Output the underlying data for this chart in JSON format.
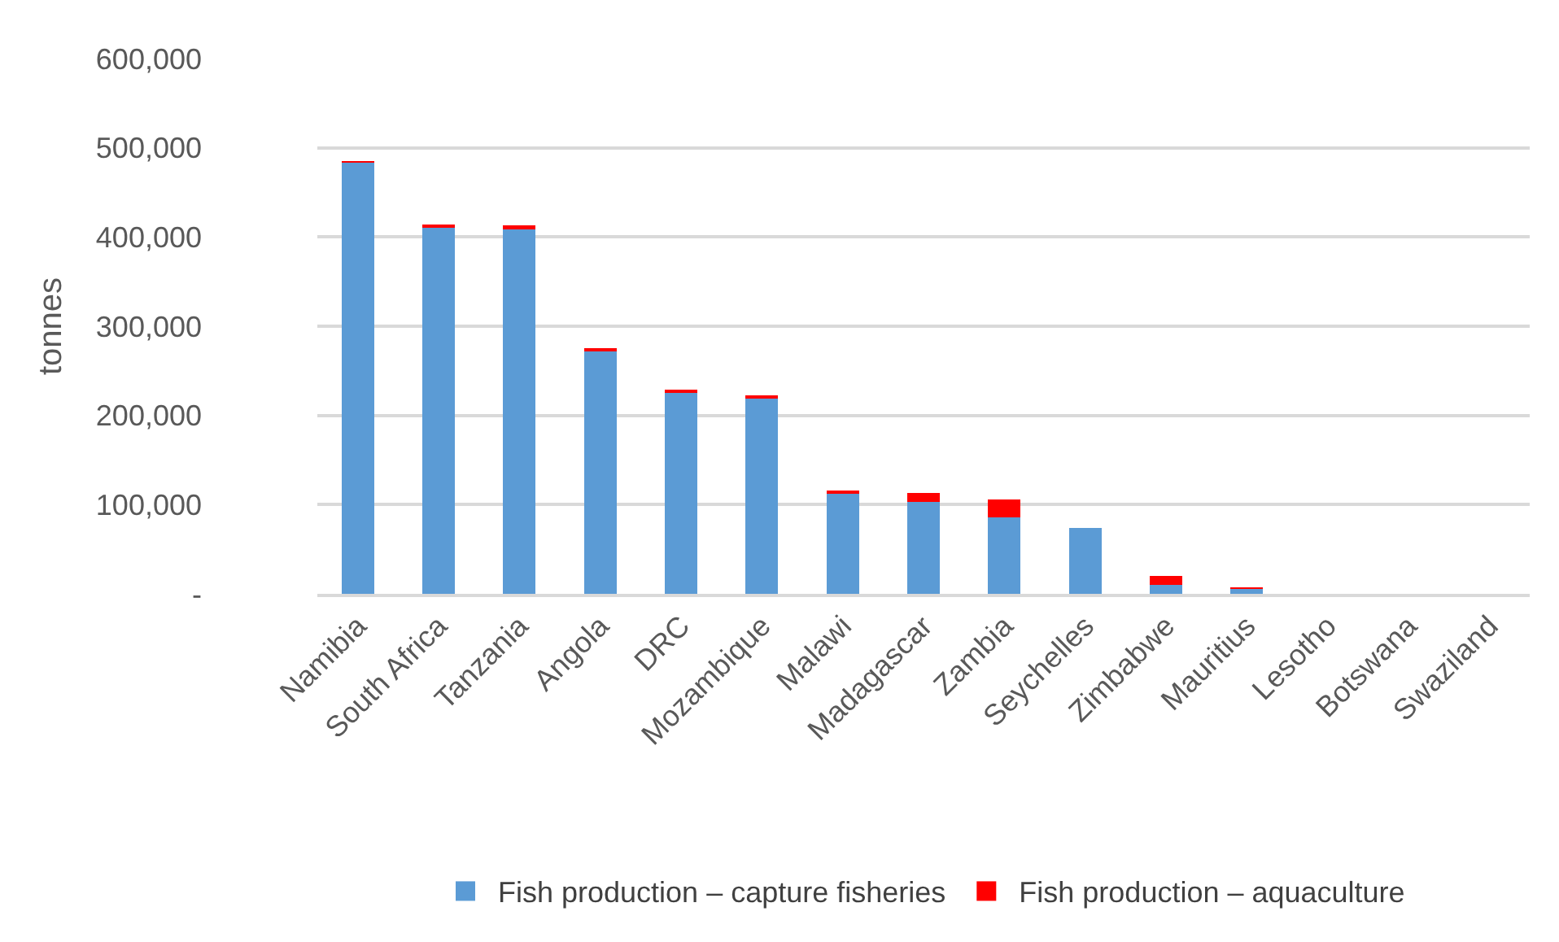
{
  "chart_data": {
    "type": "bar",
    "stacked": true,
    "ylabel": "tonnes",
    "categories": [
      "Namibia",
      "South Africa",
      "Tanzania",
      "Angola",
      "DRC",
      "Mozambique",
      "Malawi",
      "Madagascar",
      "Zambia",
      "Seychelles",
      "Zimbabwe",
      "Mauritius",
      "Lesotho",
      "Botswana",
      "Swaziland"
    ],
    "series": [
      {
        "name": "Fish production – capture fisheries",
        "color": "#5b9bd5",
        "values": [
          484000,
          410000,
          410000,
          273000,
          225000,
          220000,
          112000,
          103000,
          86000,
          74000,
          10000,
          6000,
          0,
          0,
          0
        ]
      },
      {
        "name": "Fish production – aquaculture",
        "color": "#ff0000",
        "values": [
          1000,
          4000,
          3000,
          1000,
          4000,
          1000,
          4000,
          10000,
          20000,
          0,
          10000,
          1000,
          0,
          0,
          0
        ]
      }
    ],
    "ylim": [
      0,
      600000
    ],
    "yticks": [
      {
        "value": 0,
        "label": "-"
      },
      {
        "value": 100000,
        "label": "100,000"
      },
      {
        "value": 200000,
        "label": "200,000"
      },
      {
        "value": 300000,
        "label": "300,000"
      },
      {
        "value": 400000,
        "label": "400,000"
      },
      {
        "value": 500000,
        "label": "500,000"
      },
      {
        "value": 600000,
        "label": "600,000"
      }
    ],
    "grid": "y",
    "legend": "bottom"
  }
}
